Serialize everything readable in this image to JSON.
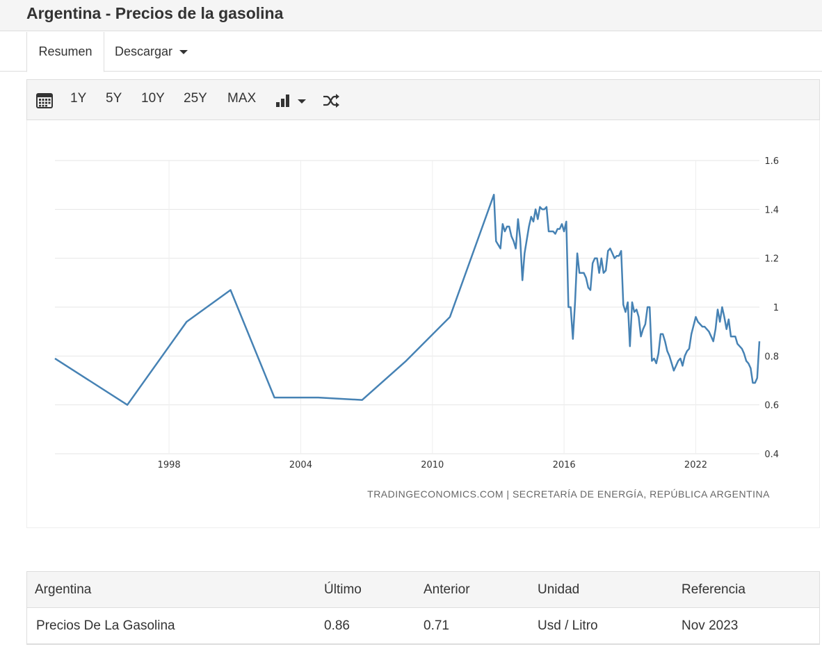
{
  "page": {
    "title": "Argentina - Precios de la gasolina"
  },
  "tabs": {
    "summary": "Resumen",
    "download": "Descargar"
  },
  "toolbar": {
    "calendar_icon": "calendar-icon",
    "ranges": [
      "1Y",
      "5Y",
      "10Y",
      "25Y",
      "MAX"
    ],
    "chart_type_icon": "bar-chart-icon",
    "compare_icon": "shuffle-icon"
  },
  "chart_data": {
    "type": "line",
    "x_axis": "year",
    "series": [
      {
        "color": "#4682b4",
        "points": [
          [
            1993.0,
            0.79
          ],
          [
            1996.3,
            0.6
          ],
          [
            1999.0,
            0.94
          ],
          [
            2001.0,
            1.07
          ],
          [
            2003.0,
            0.63
          ],
          [
            2005.0,
            0.63
          ],
          [
            2007.0,
            0.62
          ],
          [
            2009.0,
            0.78
          ],
          [
            2011.0,
            0.96
          ],
          [
            2013.0,
            1.46
          ],
          [
            2013.1,
            1.27
          ],
          [
            2013.3,
            1.24
          ],
          [
            2013.4,
            1.34
          ],
          [
            2013.5,
            1.31
          ],
          [
            2013.6,
            1.33
          ],
          [
            2013.7,
            1.33
          ],
          [
            2013.8,
            1.29
          ],
          [
            2013.9,
            1.27
          ],
          [
            2014.0,
            1.24
          ],
          [
            2014.1,
            1.36
          ],
          [
            2014.2,
            1.28
          ],
          [
            2014.3,
            1.11
          ],
          [
            2014.4,
            1.22
          ],
          [
            2014.6,
            1.33
          ],
          [
            2014.7,
            1.37
          ],
          [
            2014.8,
            1.35
          ],
          [
            2014.9,
            1.4
          ],
          [
            2015.0,
            1.36
          ],
          [
            2015.1,
            1.41
          ],
          [
            2015.2,
            1.4
          ],
          [
            2015.3,
            1.4
          ],
          [
            2015.4,
            1.41
          ],
          [
            2015.5,
            1.31
          ],
          [
            2015.6,
            1.31
          ],
          [
            2015.7,
            1.31
          ],
          [
            2015.8,
            1.3
          ],
          [
            2015.9,
            1.32
          ],
          [
            2016.0,
            1.32
          ],
          [
            2016.1,
            1.34
          ],
          [
            2016.2,
            1.31
          ],
          [
            2016.3,
            1.35
          ],
          [
            2016.4,
            1.0
          ],
          [
            2016.5,
            1.0
          ],
          [
            2016.6,
            0.87
          ],
          [
            2016.7,
            1.02
          ],
          [
            2016.8,
            1.22
          ],
          [
            2016.9,
            1.14
          ],
          [
            2017.0,
            1.14
          ],
          [
            2017.1,
            1.14
          ],
          [
            2017.2,
            1.12
          ],
          [
            2017.3,
            1.08
          ],
          [
            2017.4,
            1.07
          ],
          [
            2017.5,
            1.18
          ],
          [
            2017.6,
            1.2
          ],
          [
            2017.7,
            1.2
          ],
          [
            2017.8,
            1.14
          ],
          [
            2017.9,
            1.2
          ],
          [
            2018.0,
            1.14
          ],
          [
            2018.1,
            1.15
          ],
          [
            2018.2,
            1.23
          ],
          [
            2018.3,
            1.24
          ],
          [
            2018.4,
            1.22
          ],
          [
            2018.5,
            1.2
          ],
          [
            2018.6,
            1.21
          ],
          [
            2018.7,
            1.21
          ],
          [
            2018.8,
            1.23
          ],
          [
            2018.9,
            1.01
          ],
          [
            2019.0,
            0.98
          ],
          [
            2019.1,
            1.02
          ],
          [
            2019.2,
            0.84
          ],
          [
            2019.3,
            1.02
          ],
          [
            2019.4,
            0.98
          ],
          [
            2019.5,
            0.99
          ],
          [
            2019.6,
            0.96
          ],
          [
            2019.7,
            0.88
          ],
          [
            2019.8,
            0.91
          ],
          [
            2019.9,
            0.93
          ],
          [
            2020.0,
            1.0
          ],
          [
            2020.1,
            1.0
          ],
          [
            2020.2,
            0.78
          ],
          [
            2020.3,
            0.79
          ],
          [
            2020.4,
            0.77
          ],
          [
            2020.5,
            0.81
          ],
          [
            2020.6,
            0.89
          ],
          [
            2020.7,
            0.89
          ],
          [
            2020.8,
            0.86
          ],
          [
            2020.9,
            0.82
          ],
          [
            2021.0,
            0.8
          ],
          [
            2021.1,
            0.77
          ],
          [
            2021.2,
            0.74
          ],
          [
            2021.3,
            0.76
          ],
          [
            2021.4,
            0.78
          ],
          [
            2021.5,
            0.79
          ],
          [
            2021.6,
            0.76
          ],
          [
            2021.7,
            0.8
          ],
          [
            2021.8,
            0.82
          ],
          [
            2021.9,
            0.83
          ],
          [
            2022.0,
            0.89
          ],
          [
            2022.2,
            0.96
          ],
          [
            2022.3,
            0.94
          ],
          [
            2022.4,
            0.93
          ],
          [
            2022.5,
            0.92
          ],
          [
            2022.6,
            0.92
          ],
          [
            2022.7,
            0.91
          ],
          [
            2022.8,
            0.9
          ],
          [
            2022.9,
            0.88
          ],
          [
            2023.0,
            0.86
          ],
          [
            2023.1,
            0.91
          ],
          [
            2023.2,
            0.99
          ],
          [
            2023.3,
            0.94
          ],
          [
            2023.4,
            1.0
          ],
          [
            2023.5,
            0.96
          ],
          [
            2023.6,
            0.91
          ],
          [
            2023.7,
            0.95
          ],
          [
            2023.8,
            0.88
          ],
          [
            2023.9,
            0.88
          ],
          [
            2024.0,
            0.88
          ],
          [
            2024.1,
            0.85
          ],
          [
            2024.2,
            0.84
          ],
          [
            2024.3,
            0.83
          ],
          [
            2024.4,
            0.81
          ],
          [
            2024.5,
            0.78
          ],
          [
            2024.6,
            0.77
          ],
          [
            2024.7,
            0.75
          ],
          [
            2024.8,
            0.69
          ],
          [
            2024.9,
            0.69
          ],
          [
            2025.0,
            0.71
          ],
          [
            2025.1,
            0.86
          ]
        ]
      }
    ],
    "x_range": [
      1993.0,
      2025.1
    ],
    "ylim": [
      0.4,
      1.6
    ],
    "x_ticks": [
      "1998",
      "2004",
      "2010",
      "2016",
      "2022"
    ],
    "x_tick_values": [
      1998.2,
      2004.2,
      2010.2,
      2016.2,
      2022.2
    ],
    "y_ticks": [
      "0.4",
      "0.6",
      "0.8",
      "1",
      "1.2",
      "1.4",
      "1.6"
    ],
    "y_tick_values": [
      0.4,
      0.6,
      0.8,
      1.0,
      1.2,
      1.4,
      1.6
    ],
    "grid": true,
    "source": "TRADINGECONOMICS.COM | SECRETARÍA DE ENERGÍA, REPÚBLICA ARGENTINA"
  },
  "table": {
    "headers": [
      "Argentina",
      "Último",
      "Anterior",
      "Unidad",
      "Referencia"
    ],
    "row": [
      "Precios De La Gasolina",
      "0.86",
      "0.71",
      "Usd / Litro",
      "Nov 2023"
    ]
  }
}
